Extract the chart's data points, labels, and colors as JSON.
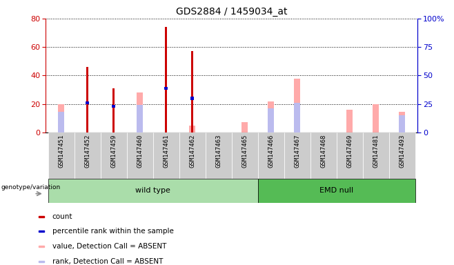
{
  "title": "GDS2884 / 1459034_at",
  "samples": [
    "GSM147451",
    "GSM147452",
    "GSM147459",
    "GSM147460",
    "GSM147461",
    "GSM147462",
    "GSM147463",
    "GSM147465",
    "GSM147466",
    "GSM147467",
    "GSM147468",
    "GSM147469",
    "GSM147481",
    "GSM147493"
  ],
  "count": [
    0,
    46,
    31,
    0,
    74,
    57,
    0,
    0,
    0,
    0,
    0,
    0,
    0,
    0
  ],
  "percentile_rank": [
    0,
    26,
    23,
    0,
    39,
    30,
    0,
    0,
    0,
    0,
    0,
    0,
    0,
    0
  ],
  "value_absent": [
    25,
    0,
    0,
    35,
    0,
    6,
    0,
    9,
    27,
    47,
    0,
    20,
    25,
    18
  ],
  "rank_absent": [
    18,
    0,
    0,
    24,
    0,
    0,
    0,
    0,
    21,
    26,
    0,
    0,
    0,
    15
  ],
  "wild_type_count": 8,
  "emd_null_count": 6,
  "ylim_left": [
    0,
    80
  ],
  "ylim_right": [
    0,
    100
  ],
  "yticks_left": [
    0,
    20,
    40,
    60,
    80
  ],
  "yticks_right": [
    0,
    25,
    50,
    75,
    100
  ],
  "color_count": "#cc0000",
  "color_percentile": "#0000cc",
  "color_value_absent": "#ffaaaa",
  "color_rank_absent": "#bbbbee",
  "color_wt_bg": "#aaddaa",
  "color_emd_bg": "#55bb55",
  "color_xticklabel_bg": "#cccccc",
  "color_left_axis": "#cc0000",
  "color_right_axis": "#0000cc",
  "thin_bar_width": 0.08,
  "wide_bar_width": 0.25,
  "legend_items": [
    "count",
    "percentile rank within the sample",
    "value, Detection Call = ABSENT",
    "rank, Detection Call = ABSENT"
  ],
  "legend_colors": [
    "#cc0000",
    "#0000cc",
    "#ffaaaa",
    "#bbbbee"
  ]
}
